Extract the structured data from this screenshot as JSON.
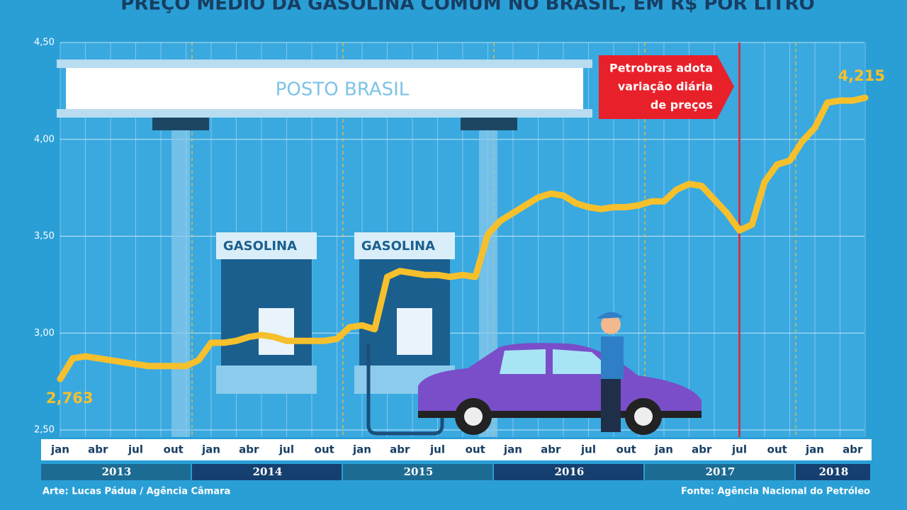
{
  "chart_data": {
    "type": "line",
    "title": "PREÇO MÉDIO DA GASOLINA COMUM NO BRASIL, EM R$ POR LITRO",
    "categories": [
      "jan",
      null,
      null,
      "abr",
      null,
      null,
      "jul",
      null,
      null,
      "out",
      null,
      null,
      "jan",
      null,
      null,
      "abr",
      null,
      null,
      "jul",
      null,
      null,
      "out",
      null,
      null,
      "jan",
      null,
      null,
      "abr",
      null,
      null,
      "jul",
      null,
      null,
      "out",
      null,
      null,
      "jan",
      null,
      null,
      "abr",
      null,
      null,
      "jul",
      null,
      null,
      "out",
      null,
      null,
      "jan",
      null,
      null,
      "abr",
      null,
      null,
      "jul",
      null,
      null,
      "out",
      null,
      null,
      "jan",
      null,
      null,
      "abr",
      null
    ],
    "years": [
      "2013",
      "2014",
      "2015",
      "2016",
      "2017",
      "2018"
    ],
    "series": [
      {
        "name": null,
        "color": "#f6c02c",
        "values": [
          2.763,
          2.87,
          2.88,
          2.87,
          2.86,
          2.85,
          2.84,
          2.83,
          2.83,
          2.83,
          2.83,
          2.86,
          2.95,
          2.95,
          2.96,
          2.98,
          2.99,
          2.98,
          2.96,
          2.96,
          2.96,
          2.96,
          2.97,
          3.03,
          3.04,
          3.02,
          3.29,
          3.32,
          3.31,
          3.3,
          3.3,
          3.29,
          3.3,
          3.29,
          3.51,
          3.58,
          3.62,
          3.66,
          3.7,
          3.72,
          3.71,
          3.67,
          3.65,
          3.64,
          3.65,
          3.65,
          3.66,
          3.68,
          3.68,
          3.74,
          3.77,
          3.76,
          3.69,
          3.62,
          3.53,
          3.56,
          3.78,
          3.87,
          3.89,
          3.99,
          4.06,
          4.19,
          4.2,
          4.2,
          4.215
        ],
        "value_labels": [
          "2,763",
          null,
          null,
          null,
          null,
          null,
          null,
          null,
          null,
          null,
          null,
          null,
          null,
          null,
          null,
          null,
          null,
          null,
          null,
          null,
          null,
          null,
          null,
          null,
          null,
          null,
          null,
          null,
          null,
          null,
          null,
          null,
          null,
          null,
          null,
          null,
          null,
          null,
          null,
          null,
          null,
          null,
          null,
          null,
          null,
          null,
          null,
          null,
          null,
          null,
          null,
          null,
          null,
          null,
          null,
          null,
          null,
          null,
          null,
          null,
          null,
          null,
          null,
          null,
          "4,215"
        ]
      }
    ],
    "ylim": [
      2.5,
      4.5
    ],
    "yticks": [
      {
        "value": 2.5,
        "label": "2,50"
      },
      {
        "value": 3.0,
        "label": "3,00"
      },
      {
        "value": 3.5,
        "label": "3,50"
      },
      {
        "value": 4.0,
        "label": "4,00"
      },
      {
        "value": 4.5,
        "label": "4,50"
      }
    ],
    "grid": true,
    "annotation": {
      "index": 54,
      "color": "#e8202a",
      "lines": [
        "Petrobras adota",
        "variação diária",
        "de preços"
      ]
    },
    "illustration": {
      "sign": "POSTO BRASIL",
      "pumps": [
        "GASOLINA",
        "GASOLINA"
      ]
    },
    "credit_left": "Arte: Lucas Pádua / Agência Câmara",
    "credit_right": "Fonte: Agência Nacional do Petróleo"
  }
}
